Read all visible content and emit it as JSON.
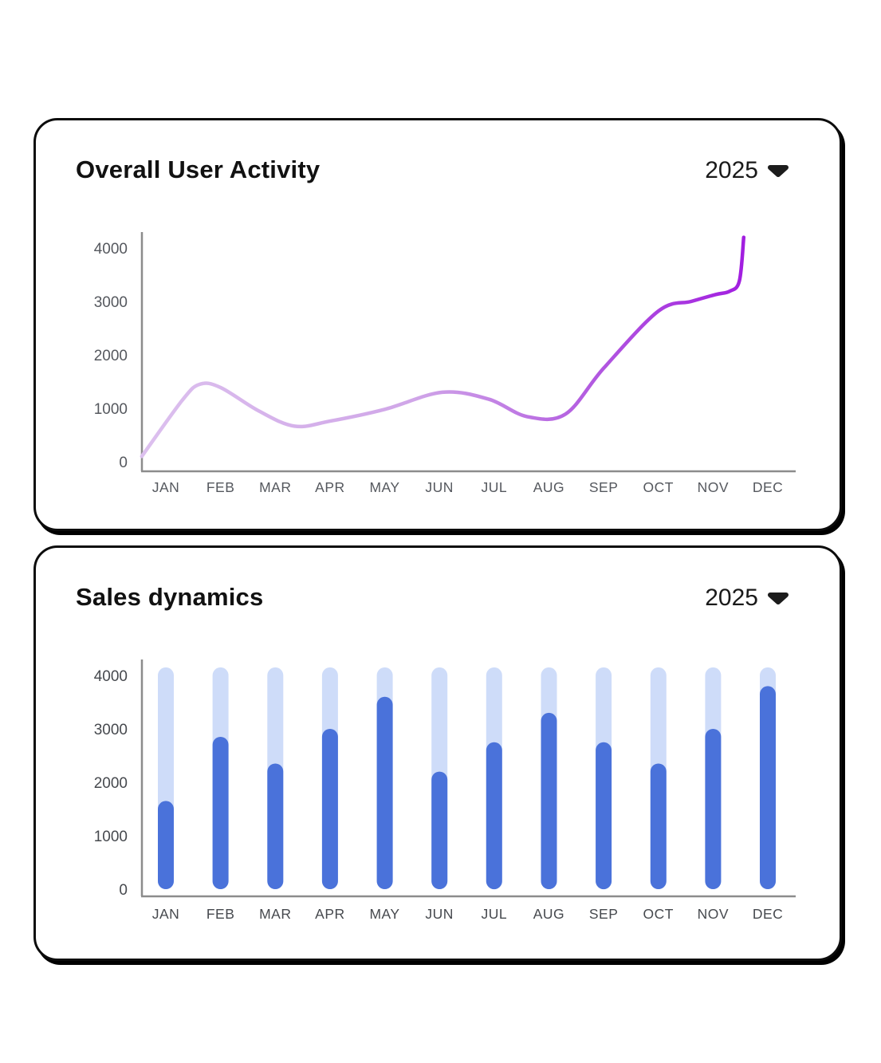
{
  "page": {
    "background": "#ffffff"
  },
  "cards": [
    {
      "title": "Overall User Activity",
      "year": "2025",
      "dropdown_icon": "chevron-down"
    },
    {
      "title": "Sales dynamics",
      "year": "2025",
      "dropdown_icon": "chevron-down"
    }
  ],
  "chart_data": [
    {
      "type": "line",
      "title": "Overall User Activity",
      "year_selected": "2025",
      "categories": [
        "JAN",
        "FEB",
        "MAR",
        "APR",
        "MAY",
        "JUN",
        "JUL",
        "AUG",
        "SEP",
        "OCT",
        "NOV",
        "DEC"
      ],
      "y_ticks": [
        0,
        1000,
        2000,
        3000,
        4000
      ],
      "ylim": [
        0,
        4300
      ],
      "grid": false,
      "legend": "none",
      "approx_monthly_values": [
        1150,
        1400,
        700,
        760,
        980,
        1300,
        1100,
        860,
        1750,
        2820,
        3130,
        4200
      ],
      "curve_points": [
        [
          -0.44,
          100
        ],
        [
          0.3,
          1150
        ],
        [
          0.62,
          1450
        ],
        [
          1.0,
          1390
        ],
        [
          1.7,
          950
        ],
        [
          2.35,
          665
        ],
        [
          3.0,
          760
        ],
        [
          4.0,
          980
        ],
        [
          5.05,
          1300
        ],
        [
          5.9,
          1170
        ],
        [
          6.6,
          845
        ],
        [
          7.3,
          890
        ],
        [
          8.0,
          1750
        ],
        [
          9.0,
          2820
        ],
        [
          9.6,
          3000
        ],
        [
          10.05,
          3130
        ],
        [
          10.3,
          3190
        ],
        [
          10.48,
          3380
        ],
        [
          10.56,
          4200
        ]
      ],
      "line_gradient": [
        "#dcc0ee",
        "#d0a6e8",
        "#b259e0",
        "#a21ee0"
      ],
      "axis_color": "#8c8c8c",
      "tick_label_color": "#55585e"
    },
    {
      "type": "bar",
      "title": "Sales dynamics",
      "year_selected": "2025",
      "categories": [
        "JAN",
        "FEB",
        "MAR",
        "APR",
        "MAY",
        "JUN",
        "JUL",
        "AUG",
        "SEP",
        "OCT",
        "NOV",
        "DEC"
      ],
      "y_ticks": [
        0,
        1000,
        2000,
        3000,
        4000
      ],
      "ylim": [
        0,
        4300
      ],
      "grid": false,
      "legend": "none",
      "series": [
        {
          "name": "track-background",
          "values": [
            4150,
            4150,
            4150,
            4150,
            4150,
            4150,
            4150,
            4150,
            4150,
            4150,
            4150,
            4150
          ],
          "color": "#cedcf9"
        },
        {
          "name": "sales",
          "values": [
            1650,
            2850,
            2350,
            3000,
            3600,
            2200,
            2750,
            3300,
            2750,
            2350,
            3000,
            3800
          ],
          "color": "#4a72da"
        }
      ],
      "axis_color": "#8c8c8c",
      "tick_label_color": "#46494e"
    }
  ]
}
